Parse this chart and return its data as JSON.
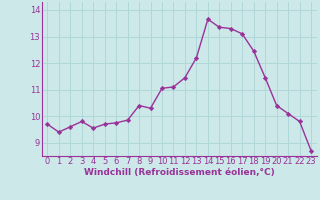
{
  "x": [
    0,
    1,
    2,
    3,
    4,
    5,
    6,
    7,
    8,
    9,
    10,
    11,
    12,
    13,
    14,
    15,
    16,
    17,
    18,
    19,
    20,
    21,
    22,
    23
  ],
  "y": [
    9.7,
    9.4,
    9.6,
    9.8,
    9.55,
    9.7,
    9.75,
    9.85,
    10.4,
    10.3,
    11.05,
    11.1,
    11.45,
    12.2,
    13.65,
    13.35,
    13.3,
    13.1,
    12.45,
    11.45,
    10.4,
    10.1,
    9.8,
    8.7
  ],
  "line_color": "#993399",
  "marker": "D",
  "marker_size": 2.2,
  "bg_color": "#cce8e8",
  "grid_color": "#b0d8d8",
  "xlabel": "Windchill (Refroidissement éolien,°C)",
  "xlabel_color": "#993399",
  "tick_color": "#993399",
  "ylim": [
    8.5,
    14.3
  ],
  "xlim": [
    -0.5,
    23.5
  ],
  "yticks": [
    9,
    10,
    11,
    12,
    13,
    14
  ],
  "xticks": [
    0,
    1,
    2,
    3,
    4,
    5,
    6,
    7,
    8,
    9,
    10,
    11,
    12,
    13,
    14,
    15,
    16,
    17,
    18,
    19,
    20,
    21,
    22,
    23
  ],
  "line_width": 1.0,
  "tick_fontsize": 6.0,
  "xlabel_fontsize": 6.5
}
